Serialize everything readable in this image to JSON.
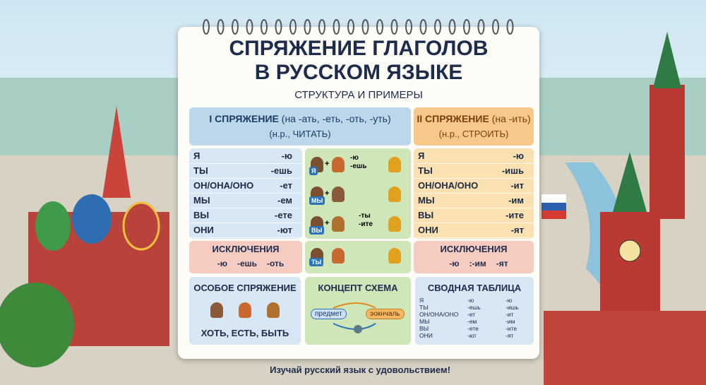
{
  "header": {
    "title_line1": "СПРЯЖЕНИЕ ГЛАГОЛОВ",
    "title_line2": "В РУССКОМ ЯЗЫКЕ",
    "subtitle": "СТРУКТУРА И ПРИМЕРЫ"
  },
  "conjugation_1": {
    "heading": "I СПРЯЖЕНИЕ",
    "rule": "(на -ать, -еть, -оть, -уть)",
    "example": "(н.р., ЧИТАТЬ)",
    "rows": [
      [
        "Я",
        "-ю"
      ],
      [
        "ТЫ",
        "-ешь"
      ],
      [
        "ОН/ОНА/ОНО",
        "-ет"
      ],
      [
        "МЫ",
        "-ем"
      ],
      [
        "ВЫ",
        "-ете"
      ],
      [
        "ОНИ",
        "-ют"
      ]
    ]
  },
  "conjugation_2": {
    "heading": "II СПРЯЖЕНИЕ",
    "rule": "(на -ить)",
    "example": "(н.р., СТРОИТЬ)",
    "rows": [
      [
        "Я",
        "-ю"
      ],
      [
        "ТЫ",
        "-ишь"
      ],
      [
        "ОН/ОНА/ОНО",
        "-ит"
      ],
      [
        "МЫ",
        "-им"
      ],
      [
        "ВЫ",
        "-ите"
      ],
      [
        "ОНИ",
        "-ят"
      ]
    ]
  },
  "middle": {
    "badges": [
      "Я",
      "МЫ",
      "ВЫ",
      "ТЫ"
    ],
    "endings": [
      "-ю",
      "-ешь",
      "-ты",
      "-ите"
    ]
  },
  "exceptions": {
    "left_title": "ИСКЛЮЧЕНИЯ",
    "left_items": [
      "-ю",
      "-ешь",
      "-оть"
    ],
    "right_title": "ИСКЛЮЧЕНИЯ",
    "right_items": [
      "-ю",
      ":-им",
      "-ят"
    ]
  },
  "special": {
    "title": "ОСОБОЕ СПРЯЖЕНИЕ",
    "verbs": "ХОТЬ, ЕСТЬ, БЫТЬ"
  },
  "concept": {
    "title": "КОНЦЕПТ СХЕМА",
    "start": "предмет",
    "end": "эокнчаль"
  },
  "summary": {
    "title": "СВОДНАЯ ТАБЛИЦА",
    "rows": [
      [
        "Я",
        "-ю",
        "-ю"
      ],
      [
        "ТЫ",
        "-ешь",
        "-ишь"
      ],
      [
        "ОН/ОНА/ОНО",
        "-ет",
        "-ит"
      ],
      [
        "МЫ",
        "-ем",
        "-им"
      ],
      [
        "ВЫ",
        "-ете",
        "-ите"
      ],
      [
        "ОНИ",
        "-ют",
        "-ят"
      ]
    ]
  },
  "footer": "Изучай русский язык с удовольствием!"
}
